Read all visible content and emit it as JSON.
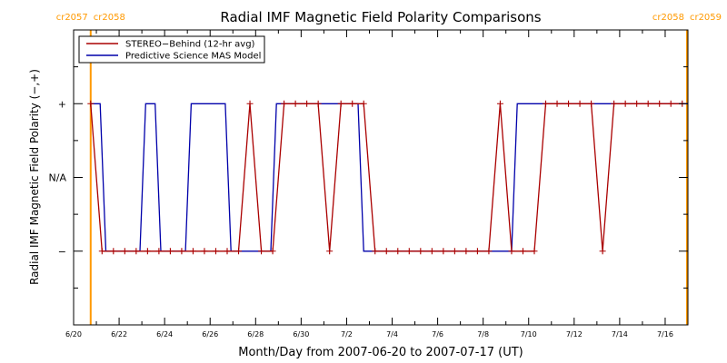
{
  "chart_data": {
    "type": "line",
    "title": "Radial IMF Magnetic Field Polarity Comparisons",
    "xlabel": "Month/Day from 2007-06-20 to 2007-07-17 (UT)",
    "ylabel": "Radial IMF Magnetic Field Polarity (−,+)",
    "xlim": [
      "2007-06-20",
      "2007-07-17"
    ],
    "x_ticks": [
      {
        "x": "2007-06-20",
        "label": "6/20"
      },
      {
        "x": "2007-06-22",
        "label": "6/22"
      },
      {
        "x": "2007-06-24",
        "label": "6/24"
      },
      {
        "x": "2007-06-26",
        "label": "6/26"
      },
      {
        "x": "2007-06-28",
        "label": "6/28"
      },
      {
        "x": "2007-06-30",
        "label": "6/30"
      },
      {
        "x": "2007-07-02",
        "label": "7/2"
      },
      {
        "x": "2007-07-04",
        "label": "7/4"
      },
      {
        "x": "2007-07-06",
        "label": "7/6"
      },
      {
        "x": "2007-07-08",
        "label": "7/8"
      },
      {
        "x": "2007-07-10",
        "label": "7/10"
      },
      {
        "x": "2007-07-12",
        "label": "7/12"
      },
      {
        "x": "2007-07-14",
        "label": "7/14"
      },
      {
        "x": "2007-07-16",
        "label": "7/16"
      }
    ],
    "y_ticks": [
      {
        "y": 1,
        "label": "+"
      },
      {
        "y": 0,
        "label": "N/A"
      },
      {
        "y": -1,
        "label": "−"
      }
    ],
    "ylim": [
      -2,
      2
    ],
    "legend_position": "top-left",
    "carrington_markers": [
      {
        "x": "2007-06-20 18:00",
        "label_left": "cr2057",
        "label_right": "cr2058",
        "color": "#ff9900"
      },
      {
        "x": "2007-07-16 23:00",
        "label_left": "cr2058",
        "label_right": "cr2059",
        "color": "#ff9900"
      }
    ],
    "series": [
      {
        "name": "STEREO−Behind (12-hr avg)",
        "color": "#aa0000",
        "markers": "plus",
        "points": [
          [
            "2007-06-20 18:00",
            1
          ],
          [
            "2007-06-21 06:00",
            -1
          ],
          [
            "2007-06-21 18:00",
            -1
          ],
          [
            "2007-06-22 06:00",
            -1
          ],
          [
            "2007-06-22 18:00",
            -1
          ],
          [
            "2007-06-23 06:00",
            -1
          ],
          [
            "2007-06-23 18:00",
            -1
          ],
          [
            "2007-06-24 06:00",
            -1
          ],
          [
            "2007-06-24 18:00",
            -1
          ],
          [
            "2007-06-25 06:00",
            -1
          ],
          [
            "2007-06-25 18:00",
            -1
          ],
          [
            "2007-06-26 06:00",
            -1
          ],
          [
            "2007-06-26 18:00",
            -1
          ],
          [
            "2007-06-27 06:00",
            -1
          ],
          [
            "2007-06-27 18:00",
            1
          ],
          [
            "2007-06-28 06:00",
            -1
          ],
          [
            "2007-06-28 18:00",
            -1
          ],
          [
            "2007-06-29 06:00",
            1
          ],
          [
            "2007-06-29 18:00",
            1
          ],
          [
            "2007-06-30 06:00",
            1
          ],
          [
            "2007-06-30 18:00",
            1
          ],
          [
            "2007-07-01 06:00",
            -1
          ],
          [
            "2007-07-01 18:00",
            1
          ],
          [
            "2007-07-02 06:00",
            1
          ],
          [
            "2007-07-02 18:00",
            1
          ],
          [
            "2007-07-03 06:00",
            -1
          ],
          [
            "2007-07-03 18:00",
            -1
          ],
          [
            "2007-07-04 06:00",
            -1
          ],
          [
            "2007-07-04 18:00",
            -1
          ],
          [
            "2007-07-05 06:00",
            -1
          ],
          [
            "2007-07-05 18:00",
            -1
          ],
          [
            "2007-07-06 06:00",
            -1
          ],
          [
            "2007-07-06 18:00",
            -1
          ],
          [
            "2007-07-07 06:00",
            -1
          ],
          [
            "2007-07-07 18:00",
            -1
          ],
          [
            "2007-07-08 06:00",
            -1
          ],
          [
            "2007-07-08 18:00",
            1
          ],
          [
            "2007-07-09 06:00",
            -1
          ],
          [
            "2007-07-09 18:00",
            -1
          ],
          [
            "2007-07-10 06:00",
            -1
          ],
          [
            "2007-07-10 18:00",
            1
          ],
          [
            "2007-07-11 06:00",
            1
          ],
          [
            "2007-07-11 18:00",
            1
          ],
          [
            "2007-07-12 06:00",
            1
          ],
          [
            "2007-07-12 18:00",
            1
          ],
          [
            "2007-07-13 06:00",
            -1
          ],
          [
            "2007-07-13 18:00",
            1
          ],
          [
            "2007-07-14 06:00",
            1
          ],
          [
            "2007-07-14 18:00",
            1
          ],
          [
            "2007-07-15 06:00",
            1
          ],
          [
            "2007-07-15 18:00",
            1
          ],
          [
            "2007-07-16 06:00",
            1
          ],
          [
            "2007-07-16 18:00",
            1
          ]
        ]
      },
      {
        "name": "Predictive Science MAS Model",
        "color": "#0000aa",
        "markers": "none",
        "points": [
          [
            "2007-06-20 18:00",
            1
          ],
          [
            "2007-06-21 04:00",
            1
          ],
          [
            "2007-06-21 10:00",
            -1
          ],
          [
            "2007-06-22 22:00",
            -1
          ],
          [
            "2007-06-23 04:00",
            1
          ],
          [
            "2007-06-23 14:00",
            1
          ],
          [
            "2007-06-23 20:00",
            -1
          ],
          [
            "2007-06-24 22:00",
            -1
          ],
          [
            "2007-06-25 04:00",
            1
          ],
          [
            "2007-06-26 16:00",
            1
          ],
          [
            "2007-06-26 22:00",
            -1
          ],
          [
            "2007-06-28 16:00",
            -1
          ],
          [
            "2007-06-28 22:00",
            1
          ],
          [
            "2007-07-02 12:00",
            1
          ],
          [
            "2007-07-02 18:00",
            -1
          ],
          [
            "2007-07-09 06:00",
            -1
          ],
          [
            "2007-07-09 12:00",
            1
          ],
          [
            "2007-07-17 00:00",
            1
          ]
        ]
      }
    ]
  }
}
